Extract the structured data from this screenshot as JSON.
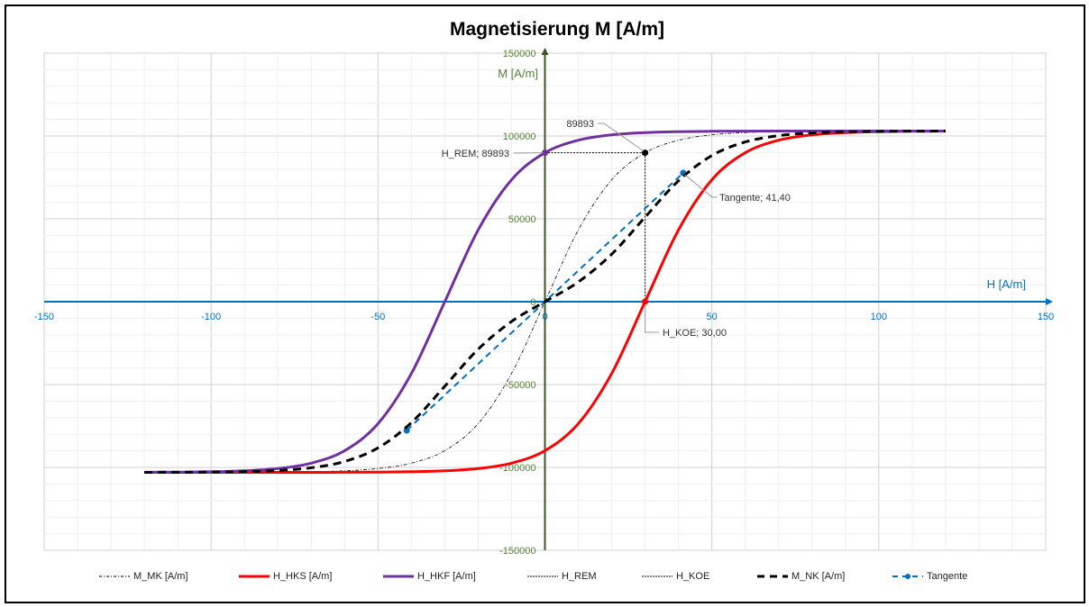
{
  "chart_data": {
    "type": "line",
    "title": "Magnetisierung M [A/m]",
    "xlabel": "H [A/m]",
    "ylabel": "M [A/m]",
    "xlim": [
      -150,
      150
    ],
    "ylim": [
      -150000,
      150000
    ],
    "x_ticks": [
      -150,
      -100,
      -50,
      0,
      50,
      100,
      150
    ],
    "y_ticks": [
      -150000,
      -100000,
      -50000,
      0,
      50000,
      100000,
      150000
    ],
    "grid": true,
    "legend_position": "bottom",
    "x": [
      -120,
      -110,
      -100,
      -90,
      -80,
      -70,
      -60,
      -50,
      -40,
      -30,
      -20,
      -10,
      0,
      10,
      20,
      30,
      40,
      50,
      60,
      70,
      80,
      90,
      100,
      110,
      120
    ],
    "series": [
      {
        "name": "M_MK [A/m]",
        "color": "#000000",
        "style": "dashdot-thin",
        "values": [
          -102996,
          -102989,
          -102973,
          -102935,
          -102840,
          -102610,
          -102050,
          -100690,
          -97440,
          -89893,
          -73580,
          -43320,
          0,
          43320,
          73580,
          89893,
          97440,
          100690,
          102050,
          102610,
          102840,
          102935,
          102973,
          102989,
          102996
        ]
      },
      {
        "name": "H_HKS  [A/m]",
        "color": "#FF0000",
        "style": "solid-thick",
        "values": [
          -103000,
          -102999,
          -102998,
          -102996,
          -102989,
          -102973,
          -102935,
          -102840,
          -102610,
          -102050,
          -100690,
          -97440,
          -89893,
          -73580,
          -43320,
          0,
          43320,
          73580,
          89893,
          97440,
          100690,
          102050,
          102610,
          102840,
          102935
        ]
      },
      {
        "name": "H_HKF  [A/m]",
        "color": "#7030A0",
        "style": "solid-thick",
        "values": [
          -102935,
          -102840,
          -102610,
          -102050,
          -100690,
          -97440,
          -89893,
          -73580,
          -43320,
          0,
          43320,
          73580,
          89893,
          97440,
          100690,
          102050,
          102610,
          102840,
          102935,
          102973,
          102989,
          102996,
          102998,
          102999,
          103000
        ]
      },
      {
        "name": "M_NK [A/m]",
        "color": "#000000",
        "style": "dash-thick",
        "values": [
          -102968,
          -102920,
          -102804,
          -102523,
          -101840,
          -100207,
          -96414,
          -88210,
          -72965,
          -51025,
          -28685,
          -11930,
          0,
          11930,
          28685,
          51025,
          72965,
          88210,
          96414,
          100207,
          101840,
          102523,
          102804,
          102920,
          102968
        ]
      }
    ],
    "lines": [
      {
        "name": "H_REM",
        "color": "#000000",
        "points": [
          [
            0,
            89893
          ],
          [
            30,
            89893
          ]
        ]
      },
      {
        "name": "H_KOE",
        "color": "#000000",
        "points": [
          [
            30,
            89893
          ],
          [
            30,
            0
          ]
        ]
      },
      {
        "name": "Tangente",
        "color": "#0070C0",
        "points": [
          [
            -41.4,
            -77700
          ],
          [
            41.4,
            77700
          ]
        ]
      }
    ],
    "annotations": [
      {
        "text": "H_REM; 89893",
        "x": 0,
        "y": 89893
      },
      {
        "text": "89893",
        "x": 30,
        "y": 89893
      },
      {
        "text": "Tangente; 41,40",
        "x": 41.4,
        "y": 77700
      },
      {
        "text": "H_KOE; 30,00",
        "x": 30,
        "y": 0
      }
    ],
    "legend": [
      "M_MK [A/m]",
      "H_HKS  [A/m]",
      "H_HKF  [A/m]",
      "H_REM",
      "H_KOE",
      "M_NK [A/m]",
      "Tangente"
    ],
    "colors": {
      "x_axis": "#0070C0",
      "y_axis": "#375623",
      "y_labels": "#548235"
    }
  }
}
